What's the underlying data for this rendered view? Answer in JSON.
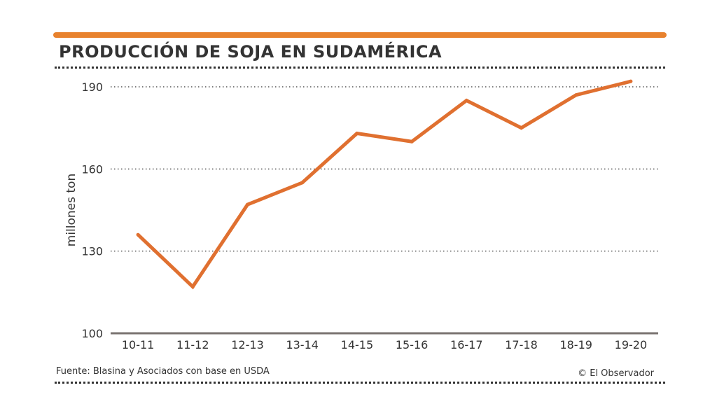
{
  "title": "PRODUCCIÓN DE SOJA EN SUDAMÉRICA",
  "footer": {
    "source": "Fuente: Blasina y Asociados con base en USDA",
    "credit": "© El Observador"
  },
  "colors": {
    "accent": "#e8822e",
    "line": "#e07030",
    "text": "#333333",
    "grid": "#555555",
    "axis": "#7a7370"
  },
  "chart_data": {
    "type": "line",
    "title": "PRODUCCIÓN DE SOJA EN SUDAMÉRICA",
    "xlabel": "",
    "ylabel": "millones ton",
    "categories": [
      "10-11",
      "11-12",
      "12-13",
      "13-14",
      "14-15",
      "15-16",
      "16-17",
      "17-18",
      "18-19",
      "19-20"
    ],
    "series": [
      {
        "name": "Producción de soja",
        "values": [
          136,
          117,
          147,
          155,
          173,
          170,
          185,
          175,
          187,
          192
        ]
      }
    ],
    "ylim": [
      100,
      190
    ],
    "yticks": [
      100,
      130,
      160,
      190
    ],
    "grid": true
  }
}
